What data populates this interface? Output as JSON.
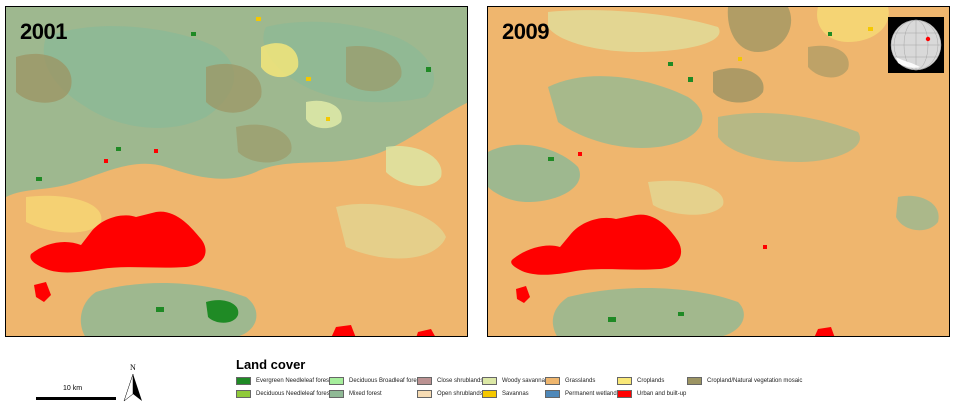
{
  "panels": [
    {
      "year": "2001"
    },
    {
      "year": "2009"
    }
  ],
  "scalebar": {
    "label": "10 km"
  },
  "north_arrow": {
    "label": "N"
  },
  "legend": {
    "title": "Land cover",
    "items": [
      {
        "label": "Evergreen Needleleaf forest",
        "color": "#1f8a25"
      },
      {
        "label": "Deciduous Needleleaf forest",
        "color": "#8fc93a"
      },
      {
        "label": "Deciduous Broadleaf forest",
        "color": "#a6ee9c"
      },
      {
        "label": "Mixed forest",
        "color": "#8fb995"
      },
      {
        "label": "Close shrublands",
        "color": "#bb9292"
      },
      {
        "label": "Open shrublands",
        "color": "#f7dcb4"
      },
      {
        "label": "Woody savannas",
        "color": "#dce8a6"
      },
      {
        "label": "Savannas",
        "color": "#f5c800"
      },
      {
        "label": "Grasslands",
        "color": "#efb66e"
      },
      {
        "label": "Permanent wetlands",
        "color": "#4e88b9"
      },
      {
        "label": "Croplands",
        "color": "#f9e878"
      },
      {
        "label": "Urban and built-up",
        "color": "#ff0000"
      },
      {
        "label": "Cropland/Natural vegetation mosaic",
        "color": "#9c9463"
      }
    ]
  }
}
